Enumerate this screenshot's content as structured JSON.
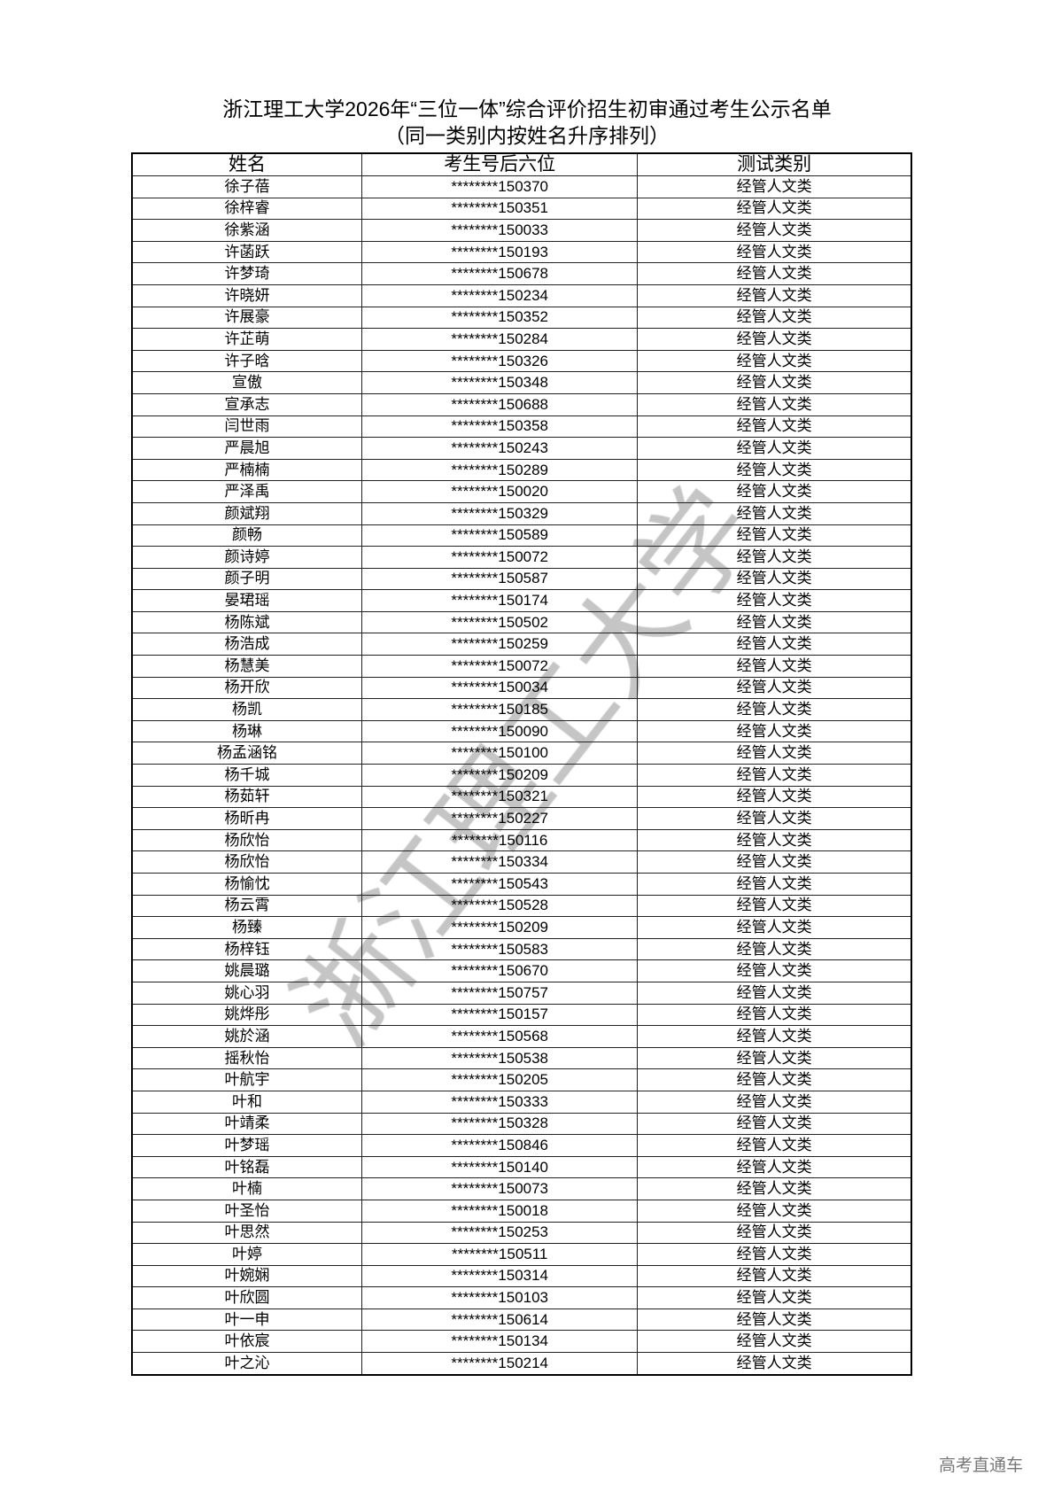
{
  "document": {
    "title": "浙江理工大学2026年“三位一体”综合评价招生初审通过考生公示名单",
    "subtitle": "（同一类别内按姓名升序排列）",
    "watermark": "浙江理工大学",
    "footer": "高考直通车"
  },
  "table": {
    "headers": [
      "姓名",
      "考生号后六位",
      "测试类别"
    ],
    "rows": [
      [
        "徐子蓓",
        "********150370",
        "经管人文类"
      ],
      [
        "徐梓睿",
        "********150351",
        "经管人文类"
      ],
      [
        "徐紫涵",
        "********150033",
        "经管人文类"
      ],
      [
        "许菡跃",
        "********150193",
        "经管人文类"
      ],
      [
        "许梦琦",
        "********150678",
        "经管人文类"
      ],
      [
        "许晓妍",
        "********150234",
        "经管人文类"
      ],
      [
        "许展豪",
        "********150352",
        "经管人文类"
      ],
      [
        "许芷萌",
        "********150284",
        "经管人文类"
      ],
      [
        "许子晗",
        "********150326",
        "经管人文类"
      ],
      [
        "宣傲",
        "********150348",
        "经管人文类"
      ],
      [
        "宣承志",
        "********150688",
        "经管人文类"
      ],
      [
        "闫世雨",
        "********150358",
        "经管人文类"
      ],
      [
        "严晨旭",
        "********150243",
        "经管人文类"
      ],
      [
        "严楠楠",
        "********150289",
        "经管人文类"
      ],
      [
        "严泽禹",
        "********150020",
        "经管人文类"
      ],
      [
        "颜斌翔",
        "********150329",
        "经管人文类"
      ],
      [
        "颜畅",
        "********150589",
        "经管人文类"
      ],
      [
        "颜诗婷",
        "********150072",
        "经管人文类"
      ],
      [
        "颜子明",
        "********150587",
        "经管人文类"
      ],
      [
        "晏珺瑶",
        "********150174",
        "经管人文类"
      ],
      [
        "杨陈斌",
        "********150502",
        "经管人文类"
      ],
      [
        "杨浩成",
        "********150259",
        "经管人文类"
      ],
      [
        "杨慧美",
        "********150072",
        "经管人文类"
      ],
      [
        "杨开欣",
        "********150034",
        "经管人文类"
      ],
      [
        "杨凯",
        "********150185",
        "经管人文类"
      ],
      [
        "杨琳",
        "********150090",
        "经管人文类"
      ],
      [
        "杨孟涵铭",
        "********150100",
        "经管人文类"
      ],
      [
        "杨千城",
        "********150209",
        "经管人文类"
      ],
      [
        "杨茹轩",
        "********150321",
        "经管人文类"
      ],
      [
        "杨昕冉",
        "********150227",
        "经管人文类"
      ],
      [
        "杨欣怡",
        "********150116",
        "经管人文类"
      ],
      [
        "杨欣怡",
        "********150334",
        "经管人文类"
      ],
      [
        "杨愉忱",
        "********150543",
        "经管人文类"
      ],
      [
        "杨云霄",
        "********150528",
        "经管人文类"
      ],
      [
        "杨臻",
        "********150209",
        "经管人文类"
      ],
      [
        "杨梓钰",
        "********150583",
        "经管人文类"
      ],
      [
        "姚晨璐",
        "********150670",
        "经管人文类"
      ],
      [
        "姚心羽",
        "********150757",
        "经管人文类"
      ],
      [
        "姚烨彤",
        "********150157",
        "经管人文类"
      ],
      [
        "姚於涵",
        "********150568",
        "经管人文类"
      ],
      [
        "摇秋怡",
        "********150538",
        "经管人文类"
      ],
      [
        "叶航宇",
        "********150205",
        "经管人文类"
      ],
      [
        "叶和",
        "********150333",
        "经管人文类"
      ],
      [
        "叶靖柔",
        "********150328",
        "经管人文类"
      ],
      [
        "叶梦瑶",
        "********150846",
        "经管人文类"
      ],
      [
        "叶铭磊",
        "********150140",
        "经管人文类"
      ],
      [
        "叶楠",
        "********150073",
        "经管人文类"
      ],
      [
        "叶圣怡",
        "********150018",
        "经管人文类"
      ],
      [
        "叶思然",
        "********150253",
        "经管人文类"
      ],
      [
        "叶婷",
        "********150511",
        "经管人文类"
      ],
      [
        "叶婉娴",
        "********150314",
        "经管人文类"
      ],
      [
        "叶欣圆",
        "********150103",
        "经管人文类"
      ],
      [
        "叶一申",
        "********150614",
        "经管人文类"
      ],
      [
        "叶依宸",
        "********150134",
        "经管人文类"
      ],
      [
        "叶之沁",
        "********150214",
        "经管人文类"
      ]
    ]
  }
}
